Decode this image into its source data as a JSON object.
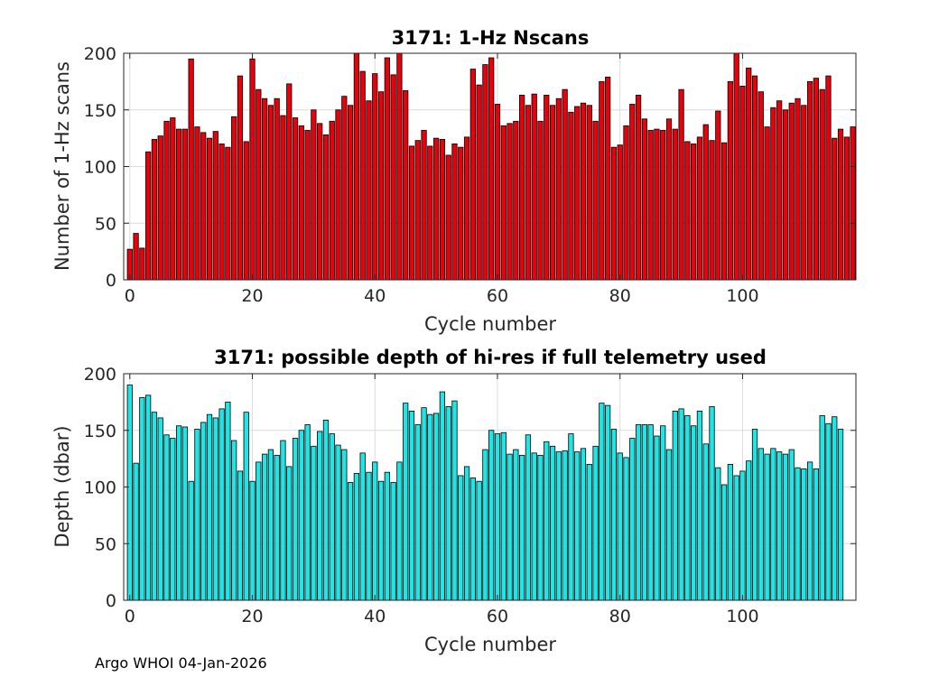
{
  "chart_data": [
    {
      "type": "bar",
      "title": "3171: 1-Hz Nscans",
      "xlabel": "Cycle number",
      "ylabel": "Number of 1-Hz scans",
      "xlim": [
        -1,
        118.5
      ],
      "ylim": [
        0,
        200
      ],
      "xticks": [
        0,
        20,
        40,
        60,
        80,
        100
      ],
      "yticks": [
        0,
        50,
        100,
        150,
        200
      ],
      "grid": true,
      "bar_color": "#e8000b",
      "x_start": 0,
      "values": [
        27,
        41,
        28,
        113,
        124,
        127,
        140,
        143,
        133,
        133,
        195,
        135,
        130,
        125,
        131,
        120,
        117,
        144,
        180,
        122,
        195,
        168,
        160,
        154,
        160,
        145,
        173,
        143,
        136,
        132,
        150,
        138,
        128,
        140,
        150,
        162,
        154,
        200,
        184,
        158,
        182,
        166,
        196,
        181,
        200,
        167,
        118,
        123,
        132,
        118,
        125,
        124,
        110,
        120,
        117,
        126,
        186,
        172,
        190,
        196,
        155,
        136,
        138,
        140,
        163,
        154,
        164,
        140,
        163,
        154,
        160,
        168,
        148,
        153,
        156,
        154,
        140,
        175,
        179,
        117,
        119,
        136,
        155,
        163,
        142,
        132,
        133,
        132,
        142,
        133,
        168,
        122,
        120,
        126,
        137,
        123,
        149,
        121,
        175,
        200,
        171,
        187,
        180,
        166,
        135,
        152,
        158,
        150,
        156,
        160,
        154,
        175,
        178,
        168,
        180,
        125,
        133,
        126,
        135
      ]
    },
    {
      "type": "bar",
      "title": "3171: possible depth of hi-res if full telemetry used",
      "xlabel": "Cycle number",
      "ylabel": "Depth (dbar)",
      "xlim": [
        -1,
        118.5
      ],
      "ylim": [
        0,
        200
      ],
      "xticks": [
        0,
        20,
        40,
        60,
        80,
        100
      ],
      "yticks": [
        0,
        50,
        100,
        150,
        200
      ],
      "grid": true,
      "bar_color": "#1ee6e6",
      "x_start": 0,
      "values": [
        190,
        121,
        179,
        181,
        166,
        161,
        146,
        143,
        154,
        153,
        105,
        151,
        157,
        164,
        161,
        169,
        175,
        141,
        114,
        166,
        105,
        122,
        129,
        133,
        128,
        141,
        118,
        143,
        150,
        155,
        136,
        149,
        159,
        147,
        137,
        133,
        104,
        112,
        130,
        113,
        122,
        105,
        113,
        104,
        122,
        174,
        167,
        155,
        170,
        164,
        165,
        184,
        171,
        176,
        110,
        118,
        108,
        105,
        133,
        150,
        147,
        148,
        129,
        133,
        128,
        146,
        130,
        128,
        140,
        136,
        131,
        132,
        147,
        131,
        134,
        120,
        136,
        174,
        172,
        151,
        130,
        126,
        143,
        155,
        155,
        155,
        145,
        154,
        133,
        167,
        169,
        163,
        154,
        167,
        138,
        171,
        117,
        102,
        120,
        110,
        114,
        123,
        151,
        134,
        129,
        134,
        131,
        129,
        133,
        117,
        116,
        122,
        116,
        163,
        156,
        162,
        151
      ]
    }
  ],
  "footer": "Argo WHOI 04-Jan-2026"
}
